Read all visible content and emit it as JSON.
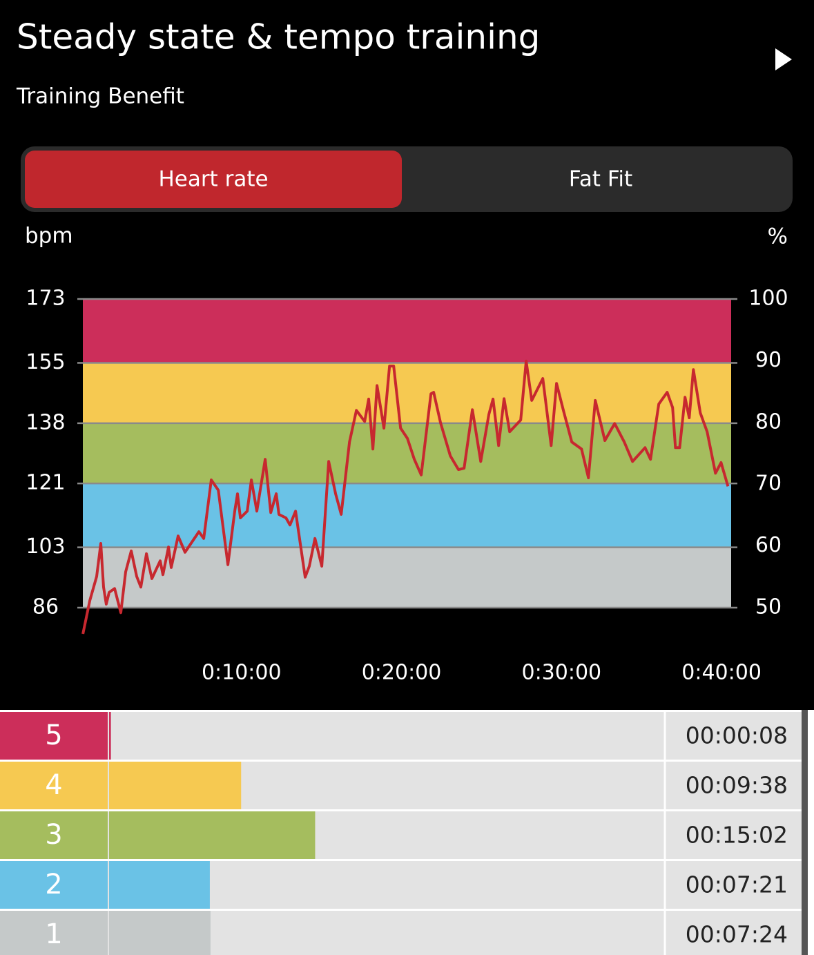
{
  "header": {
    "title": "Steady state & tempo training",
    "subtitle": "Training Benefit"
  },
  "tabs": [
    {
      "label": "Heart rate",
      "active": true
    },
    {
      "label": "Fat Fit",
      "active": false
    }
  ],
  "chart_data": [
    {
      "type": "line",
      "ylabel": "bpm",
      "y2label": "%",
      "x": [
        0.09,
        0.52,
        0.95,
        1.21,
        1.38,
        1.55,
        1.73,
        2.07,
        2.46,
        2.76,
        3.11,
        3.45,
        3.71,
        4.06,
        4.4,
        4.92,
        5.09,
        5.44,
        5.61,
        6.04,
        6.47,
        7.34,
        7.64,
        8.11,
        8.55,
        9.15,
        9.58,
        9.75,
        9.93,
        10.36,
        10.62,
        10.96,
        11.48,
        11.83,
        12.17,
        12.34,
        12.78,
        13.03,
        13.38,
        13.98,
        14.24,
        14.59,
        15.02,
        15.45,
        15.88,
        16.23,
        16.75,
        17.18,
        17.7,
        17.95,
        18.21,
        18.47,
        18.9,
        19.25,
        19.51,
        19.94,
        20.37,
        20.8,
        21.23,
        21.84,
        22.01,
        22.44,
        23.05,
        23.56,
        23.91,
        24.43,
        24.95,
        25.46,
        25.72,
        26.07,
        26.41,
        26.76,
        27.45,
        27.79,
        28.14,
        28.83,
        29.35,
        29.69,
        30.13,
        30.64,
        31.25,
        31.68,
        32.11,
        32.71,
        33.32,
        33.92,
        34.44,
        35.22,
        35.56,
        36.08,
        36.6,
        36.94,
        37.12,
        37.38,
        37.72,
        37.98,
        38.24,
        38.67,
        39.1,
        39.62,
        39.97,
        40.4
      ],
      "values": [
        78.6,
        88,
        94.8,
        104.1,
        91.8,
        87,
        90.3,
        91.4,
        84.6,
        96.1,
        102,
        94.8,
        91.8,
        101.2,
        94.2,
        99.2,
        95.3,
        103.1,
        97.3,
        106.2,
        101.6,
        107.4,
        105.5,
        122,
        119.1,
        98.1,
        113.2,
        118.1,
        111.3,
        113.2,
        122,
        113.2,
        127.8,
        112.8,
        118.1,
        112.3,
        111.3,
        109.3,
        113.2,
        94.6,
        97.7,
        105.5,
        97.7,
        127.2,
        118.1,
        112.3,
        132.7,
        141.6,
        138.5,
        144.8,
        130.7,
        148.6,
        136.6,
        154.1,
        154.1,
        136.6,
        133.7,
        127.8,
        123.4,
        146.3,
        146.7,
        138.1,
        128.8,
        124.9,
        125.3,
        141.8,
        127.2,
        140.5,
        144.8,
        131.7,
        144.9,
        135.6,
        138.9,
        155.5,
        144.4,
        150.6,
        131.7,
        149.2,
        141.4,
        132.7,
        130.7,
        122.6,
        144.4,
        133.1,
        137.9,
        132.7,
        127.2,
        131.1,
        127.8,
        143.4,
        146.7,
        142.4,
        131.1,
        131.1,
        145.3,
        139.5,
        153.1,
        140.9,
        135.6,
        123.9,
        126.9,
        120.2
      ],
      "color": "#c7282f",
      "xlim": [
        0,
        40.6
      ],
      "xticks": [
        {
          "value": 10,
          "label": "0:10:00"
        },
        {
          "value": 20,
          "label": "0:20:00"
        },
        {
          "value": 30,
          "label": "0:30:00"
        },
        {
          "value": 40,
          "label": "0:40:00"
        }
      ],
      "ylim": [
        86,
        173
      ],
      "yticks": [
        86,
        103,
        121,
        138,
        155,
        173
      ],
      "y2lim": [
        50,
        100
      ],
      "y2ticks": [
        50,
        60,
        70,
        80,
        90,
        100
      ],
      "band_colors": [
        "#c5c9c9",
        "#6ac2e6",
        "#a5bd5e",
        "#f6c951",
        "#cc2e5a"
      ],
      "grid": true
    },
    {
      "type": "hbar",
      "categories": [
        "5",
        "4",
        "3",
        "2",
        "1"
      ],
      "values": [
        8,
        578,
        902,
        441,
        444
      ],
      "value_labels": [
        "00:00:08",
        "00:09:38",
        "00:15:02",
        "00:07:21",
        "00:07:24"
      ],
      "colors": [
        "#cc2e5a",
        "#f6c951",
        "#a5bd5e",
        "#6ac2e6",
        "#c5c9c9"
      ],
      "xlim": [
        0,
        2430
      ]
    }
  ]
}
